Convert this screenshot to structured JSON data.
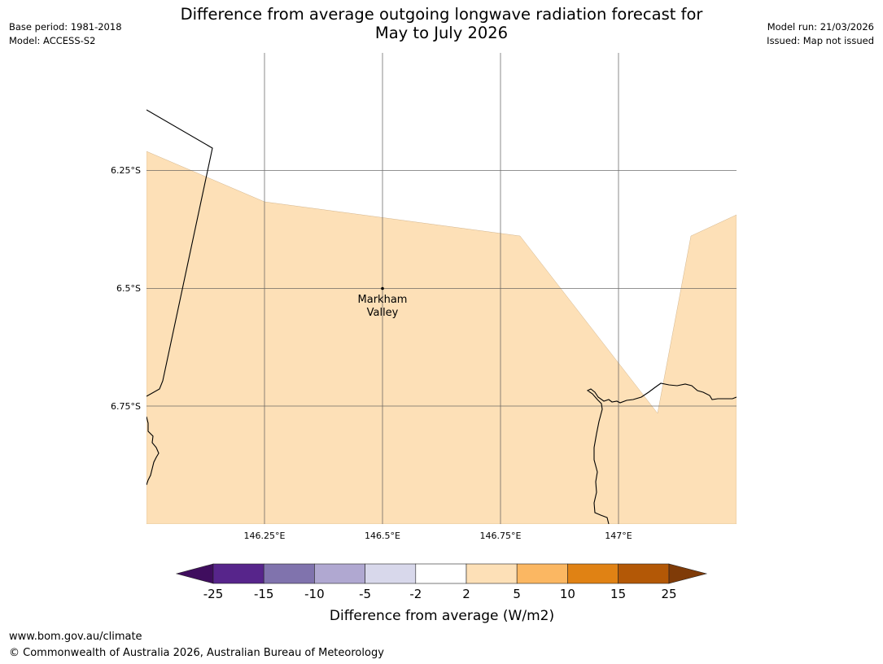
{
  "title": {
    "line1": "Difference from average outgoing longwave radiation forecast for",
    "line2": "May to July 2026"
  },
  "meta_left": [
    "Base period: 1981-2018",
    "Model: ACCESS-S2"
  ],
  "meta_right": [
    "Model run: 21/03/2026",
    "Issued: Map not issued"
  ],
  "map": {
    "lon_ticks": [
      "146.25°E",
      "146.5°E",
      "146.75°E",
      "147°E"
    ],
    "lat_ticks": [
      "6.25°S",
      "6.5°S",
      "6.75°S"
    ],
    "place": {
      "name_line1": "Markham",
      "name_line2": "Valley"
    },
    "fill_color": "#fde0b7"
  },
  "colorbar": {
    "title": "Difference from average (W/m2)",
    "tick_labels": [
      "-25",
      "-15",
      "-10",
      "-5",
      "-2",
      "2",
      "5",
      "10",
      "15",
      "25"
    ],
    "colors": [
      "#3f0d5e",
      "#57258b",
      "#8073ad",
      "#b0a8d1",
      "#d8d8eb",
      "#ffffff",
      "#fde0b7",
      "#fbb762",
      "#e08214",
      "#b35806",
      "#7f3b08"
    ]
  },
  "footer": {
    "url": "www.bom.gov.au/climate",
    "copyright": "© Commonwealth of Australia 2026, Australian Bureau of Meteorology"
  }
}
